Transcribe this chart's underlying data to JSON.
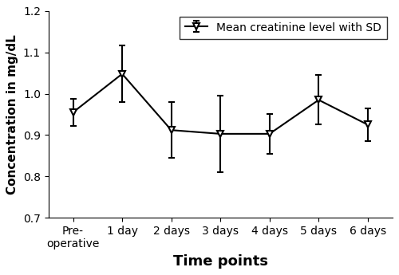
{
  "x_labels": [
    "Pre-\noperative",
    "1 day",
    "2 days",
    "3 days",
    "4 days",
    "5 days",
    "6 days"
  ],
  "x_values": [
    0,
    1,
    2,
    3,
    4,
    5,
    6
  ],
  "y_means": [
    0.955,
    1.048,
    0.912,
    0.903,
    0.903,
    0.985,
    0.925
  ],
  "y_errors": [
    0.033,
    0.068,
    0.068,
    0.093,
    0.048,
    0.06,
    0.04
  ],
  "ylim": [
    0.7,
    1.2
  ],
  "yticks": [
    0.7,
    0.8,
    0.9,
    1.0,
    1.1,
    1.2
  ],
  "ylabel": "Concentration in mg/dL",
  "xlabel": "Time points",
  "legend_label": "Mean creatinine level with SD",
  "line_color": "#000000",
  "marker": "v",
  "marker_size": 6,
  "line_width": 1.5,
  "capsize": 3,
  "label_fontsize": 11,
  "xlabel_fontsize": 13,
  "tick_fontsize": 10,
  "legend_fontsize": 10,
  "background_color": "#ffffff"
}
